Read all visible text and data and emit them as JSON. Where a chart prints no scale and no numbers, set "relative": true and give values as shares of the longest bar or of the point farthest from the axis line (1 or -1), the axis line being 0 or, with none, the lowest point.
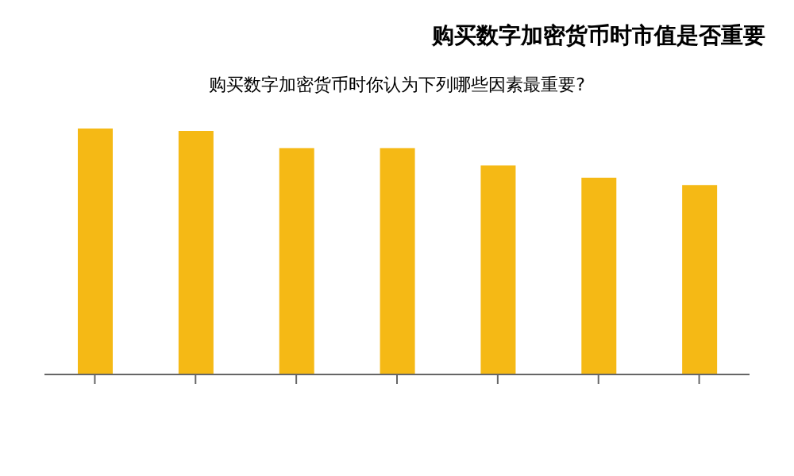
{
  "chart_data": {
    "type": "bar",
    "title": "购买数字加密货币时你认为下列哪些因素最重要?",
    "annotations": [
      "购买数字加密货币时市值是否重要"
    ],
    "categories": [
      null,
      null,
      null,
      null,
      null,
      null,
      null
    ],
    "values": [
      1,
      0.99,
      0.92,
      0.92,
      0.85,
      0.8,
      0.77
    ],
    "color": "#f5b915",
    "relative": true
  }
}
